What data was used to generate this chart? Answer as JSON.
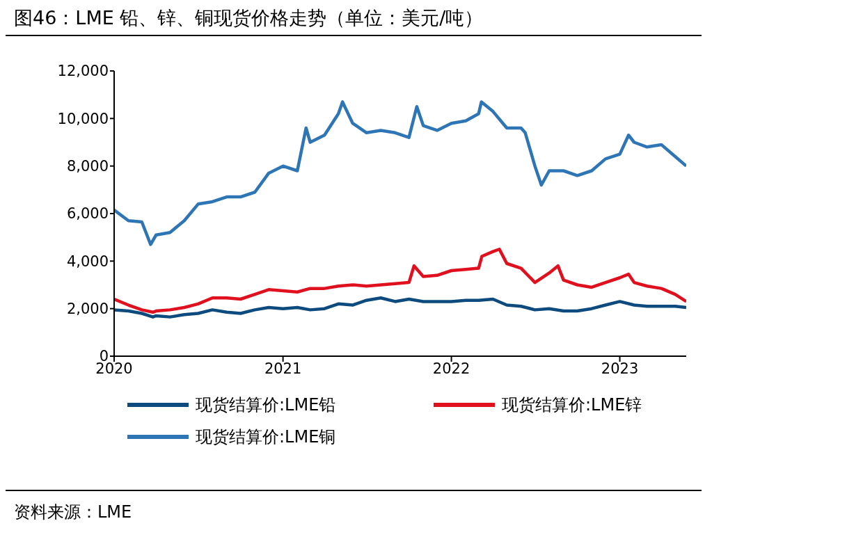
{
  "chart_data": {
    "type": "line",
    "title": "图46：LME 铅、锌、铜现货价格走势（单位：美元/吨）",
    "annotations": [
      "资料来源：LME"
    ],
    "xlim": [
      "2020-01-01",
      "2023-05-25"
    ],
    "xticks": [
      "2020",
      "2021",
      "2022",
      "2023"
    ],
    "ylim": [
      0,
      12000
    ],
    "yticks": [
      {
        "value": 0,
        "label": "0"
      },
      {
        "value": 2000,
        "label": "2,000"
      },
      {
        "value": 4000,
        "label": "4,000"
      },
      {
        "value": 6000,
        "label": "6,000"
      },
      {
        "value": 8000,
        "label": "8,000"
      },
      {
        "value": 10000,
        "label": "10,000"
      },
      {
        "value": 12000,
        "label": "12,000"
      }
    ],
    "grid": false,
    "legend": "bottom",
    "marker": "none",
    "line_style": "solid",
    "series": [
      {
        "name": "现货结算价:LME铅",
        "color": "#0d4a7e",
        "x": [
          "2020-01-01",
          "2020-02-01",
          "2020-03-01",
          "2020-03-25",
          "2020-04-01",
          "2020-05-01",
          "2020-06-01",
          "2020-07-01",
          "2020-08-01",
          "2020-09-01",
          "2020-10-01",
          "2020-11-01",
          "2020-12-01",
          "2021-01-01",
          "2021-02-01",
          "2021-03-01",
          "2021-04-01",
          "2021-05-01",
          "2021-06-01",
          "2021-07-01",
          "2021-08-01",
          "2021-09-01",
          "2021-10-01",
          "2021-11-01",
          "2021-12-01",
          "2022-01-01",
          "2022-02-01",
          "2022-03-01",
          "2022-04-01",
          "2022-05-01",
          "2022-06-01",
          "2022-07-01",
          "2022-08-01",
          "2022-09-01",
          "2022-10-01",
          "2022-11-01",
          "2022-12-01",
          "2023-01-01",
          "2023-02-01",
          "2023-03-01",
          "2023-04-01",
          "2023-05-01",
          "2023-05-25"
        ],
        "values": [
          1950,
          1900,
          1800,
          1650,
          1700,
          1650,
          1750,
          1800,
          1950,
          1850,
          1800,
          1950,
          2050,
          2000,
          2050,
          1950,
          2000,
          2200,
          2150,
          2350,
          2450,
          2300,
          2400,
          2300,
          2300,
          2300,
          2350,
          2350,
          2400,
          2150,
          2100,
          1950,
          2000,
          1900,
          1900,
          2000,
          2150,
          2300,
          2150,
          2100,
          2100,
          2100,
          2050
        ]
      },
      {
        "name": "现货结算价:LME锌",
        "color": "#e0101e",
        "x": [
          "2020-01-01",
          "2020-02-01",
          "2020-03-01",
          "2020-03-25",
          "2020-04-01",
          "2020-05-01",
          "2020-06-01",
          "2020-07-01",
          "2020-08-01",
          "2020-09-01",
          "2020-10-01",
          "2020-11-01",
          "2020-12-01",
          "2021-01-01",
          "2021-02-01",
          "2021-03-01",
          "2021-04-01",
          "2021-05-01",
          "2021-06-01",
          "2021-07-01",
          "2021-08-01",
          "2021-09-01",
          "2021-10-01",
          "2021-10-12",
          "2021-11-01",
          "2021-12-01",
          "2022-01-01",
          "2022-02-01",
          "2022-03-01",
          "2022-03-08",
          "2022-04-01",
          "2022-04-15",
          "2022-05-01",
          "2022-06-01",
          "2022-07-01",
          "2022-08-01",
          "2022-08-20",
          "2022-09-01",
          "2022-10-01",
          "2022-11-01",
          "2022-12-01",
          "2023-01-01",
          "2023-01-20",
          "2023-02-01",
          "2023-03-01",
          "2023-04-01",
          "2023-05-01",
          "2023-05-25"
        ],
        "values": [
          2400,
          2150,
          1950,
          1850,
          1900,
          1950,
          2050,
          2200,
          2450,
          2450,
          2400,
          2600,
          2800,
          2750,
          2700,
          2850,
          2850,
          2950,
          3000,
          2950,
          3000,
          3050,
          3100,
          3800,
          3350,
          3400,
          3600,
          3650,
          3700,
          4200,
          4400,
          4500,
          3900,
          3700,
          3100,
          3500,
          3800,
          3200,
          3000,
          2900,
          3100,
          3300,
          3450,
          3100,
          2950,
          2850,
          2600,
          2300
        ]
      },
      {
        "name": "现货结算价:LME铜",
        "color": "#2e75b6",
        "x": [
          "2020-01-01",
          "2020-02-01",
          "2020-03-01",
          "2020-03-20",
          "2020-04-01",
          "2020-05-01",
          "2020-06-01",
          "2020-07-01",
          "2020-08-01",
          "2020-09-01",
          "2020-10-01",
          "2020-11-01",
          "2020-12-01",
          "2021-01-01",
          "2021-02-01",
          "2021-02-20",
          "2021-03-01",
          "2021-04-01",
          "2021-05-01",
          "2021-05-10",
          "2021-06-01",
          "2021-07-01",
          "2021-08-01",
          "2021-09-01",
          "2021-10-01",
          "2021-10-18",
          "2021-11-01",
          "2021-12-01",
          "2022-01-01",
          "2022-02-01",
          "2022-03-01",
          "2022-03-07",
          "2022-04-01",
          "2022-05-01",
          "2022-06-01",
          "2022-06-10",
          "2022-07-01",
          "2022-07-15",
          "2022-08-01",
          "2022-09-01",
          "2022-10-01",
          "2022-11-01",
          "2022-12-01",
          "2023-01-01",
          "2023-01-20",
          "2023-02-01",
          "2023-03-01",
          "2023-04-01",
          "2023-05-01",
          "2023-05-25"
        ],
        "values": [
          6150,
          5700,
          5650,
          4700,
          5100,
          5200,
          5700,
          6400,
          6500,
          6700,
          6700,
          6900,
          7700,
          8000,
          7800,
          9600,
          9000,
          9300,
          10200,
          10700,
          9800,
          9400,
          9500,
          9400,
          9200,
          10500,
          9700,
          9500,
          9800,
          9900,
          10200,
          10700,
          10300,
          9600,
          9600,
          9400,
          8000,
          7200,
          7800,
          7800,
          7600,
          7800,
          8300,
          8500,
          9300,
          9000,
          8800,
          8900,
          8400,
          8000
        ]
      }
    ]
  }
}
